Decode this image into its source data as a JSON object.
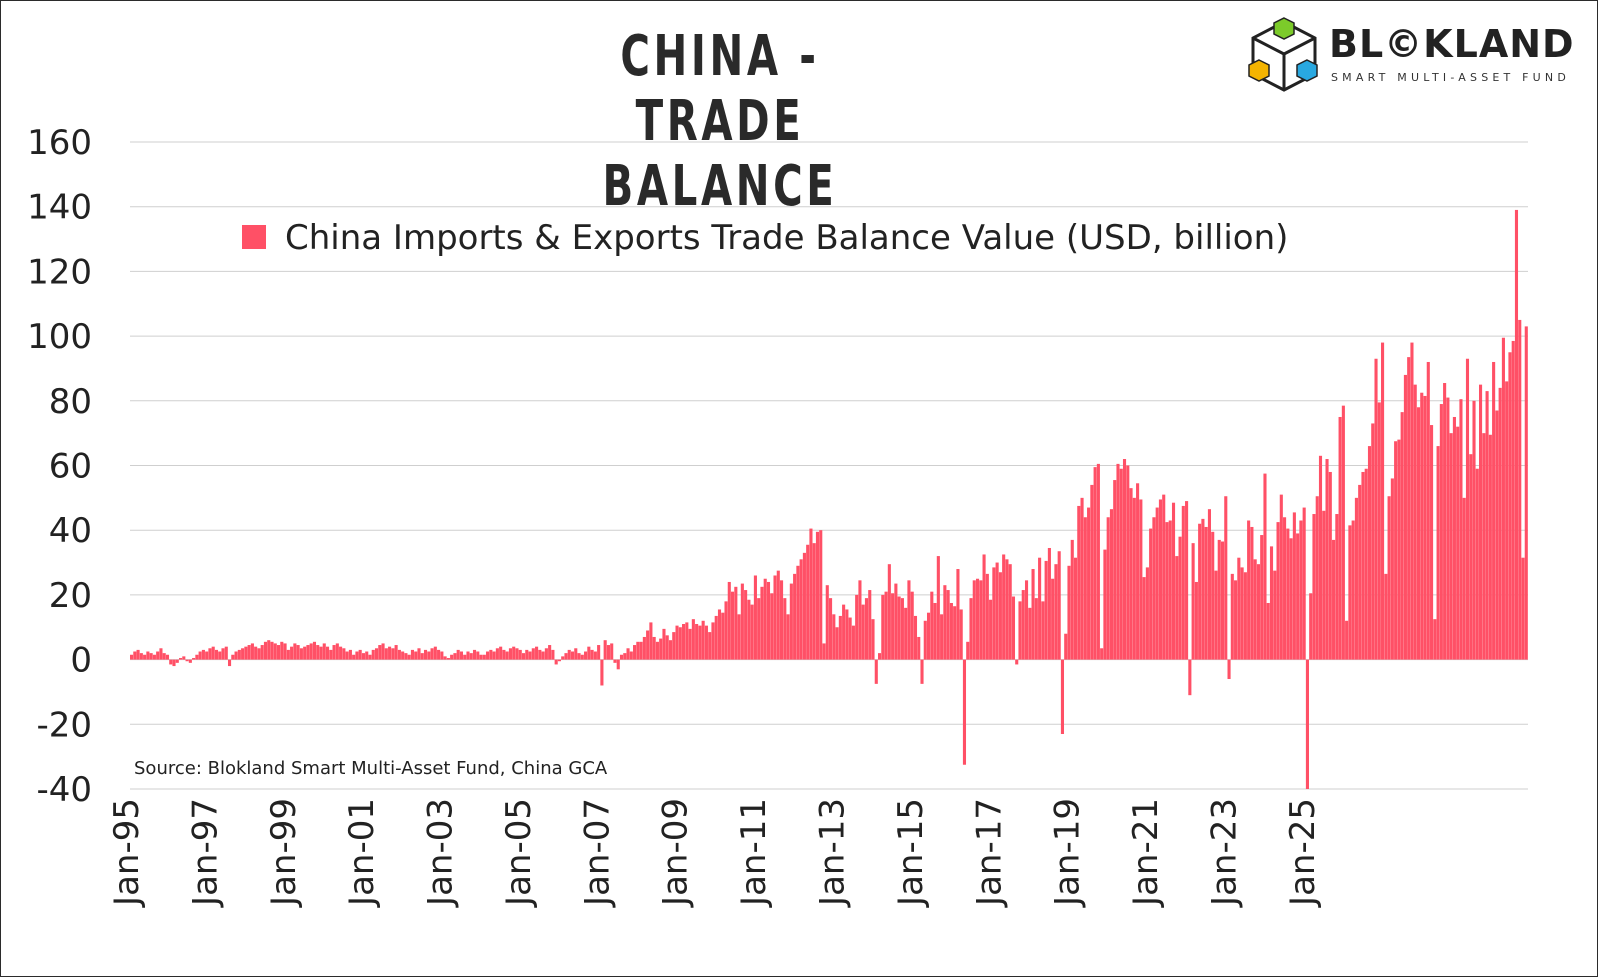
{
  "title": "CHINA - TRADE BALANCE",
  "logo": {
    "name": "BL©KLAND",
    "subtitle": "SMART MULTI-ASSET FUND",
    "icon": "cube-logo-icon"
  },
  "source": "Source: Blokland Smart Multi-Asset Fund, China GCA",
  "colors": {
    "bar": "#ff5066",
    "grid": "#cfcfcf",
    "text": "#222222"
  },
  "chart_data": {
    "type": "bar",
    "title": "CHINA - TRADE BALANCE",
    "legend": {
      "label": "China Imports & Exports Trade Balance Value (USD, billion)",
      "position": "top-center"
    },
    "ylim": [
      -40,
      160
    ],
    "yticks": [
      "160",
      "140",
      "120",
      "100",
      "80",
      "60",
      "40",
      "20",
      "0",
      "-20",
      "-40"
    ],
    "xticks": [
      "Jan-95",
      "Jan-97",
      "Jan-99",
      "Jan-01",
      "Jan-03",
      "Jan-05",
      "Jan-07",
      "Jan-09",
      "Jan-11",
      "Jan-13",
      "Jan-15",
      "Jan-17",
      "Jan-19",
      "Jan-21",
      "Jan-23",
      "Jan-25"
    ],
    "grid": true,
    "start": "Jan-95",
    "frequency": "monthly",
    "values": [
      1.5,
      2.5,
      3.0,
      2.0,
      1.5,
      2.5,
      2.0,
      1.5,
      2.5,
      3.5,
      2.0,
      1.5,
      -1.5,
      -2.0,
      -1.0,
      0.5,
      1.0,
      -0.5,
      -1.0,
      0.5,
      1.5,
      2.5,
      3.0,
      2.5,
      3.5,
      4.0,
      3.0,
      2.5,
      3.5,
      4.0,
      -2.0,
      1.5,
      2.5,
      3.0,
      3.5,
      4.0,
      4.5,
      5.0,
      4.0,
      3.5,
      4.5,
      5.5,
      6.0,
      5.5,
      5.0,
      4.5,
      5.5,
      5.0,
      3.0,
      4.0,
      5.0,
      4.5,
      3.5,
      4.0,
      4.5,
      5.0,
      5.5,
      4.5,
      4.0,
      5.0,
      4.0,
      3.0,
      4.5,
      5.0,
      4.0,
      3.5,
      2.5,
      3.0,
      1.5,
      2.5,
      3.0,
      2.0,
      2.5,
      1.5,
      3.0,
      3.5,
      4.5,
      5.0,
      3.5,
      4.0,
      3.5,
      4.5,
      3.0,
      2.5,
      2.0,
      1.5,
      3.0,
      2.5,
      3.5,
      2.0,
      3.0,
      2.5,
      3.5,
      4.0,
      3.0,
      2.5,
      1.0,
      0.5,
      1.5,
      2.0,
      3.0,
      2.5,
      1.5,
      2.5,
      2.0,
      3.0,
      2.5,
      1.5,
      1.5,
      2.5,
      3.0,
      2.5,
      3.5,
      4.0,
      3.0,
      2.5,
      3.5,
      4.0,
      3.5,
      3.0,
      2.0,
      3.0,
      2.5,
      3.5,
      4.0,
      3.0,
      2.5,
      3.5,
      4.5,
      3.0,
      -1.5,
      -0.5,
      1.0,
      2.0,
      3.0,
      2.5,
      3.5,
      2.0,
      1.5,
      2.5,
      4.0,
      3.0,
      2.5,
      4.5,
      -8.0,
      6.0,
      4.5,
      5.0,
      -1.0,
      -3.0,
      1.5,
      2.0,
      3.5,
      2.5,
      4.5,
      5.5,
      5.5,
      7.0,
      9.0,
      11.5,
      7.0,
      5.5,
      6.5,
      9.5,
      7.5,
      6.0,
      8.5,
      10.5,
      10.0,
      11.0,
      11.5,
      9.5,
      12.5,
      11.0,
      10.5,
      12.0,
      10.5,
      8.5,
      11.5,
      13.5,
      15.5,
      14.5,
      18.0,
      24.0,
      21.0,
      22.5,
      14.0,
      23.5,
      21.5,
      18.5,
      17.0,
      26.0,
      19.0,
      22.5,
      25.0,
      24.0,
      20.5,
      26.0,
      27.5,
      24.5,
      19.0,
      14.0,
      23.5,
      26.5,
      29.0,
      31.0,
      33.0,
      35.5,
      40.5,
      36.0,
      39.5,
      40.0,
      5.0,
      23.0,
      19.0,
      14.0,
      10.0,
      13.5,
      17.0,
      15.5,
      13.0,
      10.5,
      20.0,
      24.5,
      17.0,
      19.0,
      21.5,
      12.5,
      -7.5,
      2.0,
      20.0,
      21.0,
      29.5,
      20.5,
      23.5,
      19.5,
      19.0,
      16.0,
      24.5,
      21.0,
      13.5,
      7.0,
      -7.5,
      12.0,
      14.5,
      21.0,
      17.5,
      32.0,
      14.0,
      23.0,
      21.5,
      17.5,
      16.5,
      28.0,
      15.5,
      -32.5,
      5.5,
      19.0,
      24.5,
      25.0,
      24.5,
      32.5,
      26.5,
      18.5,
      28.5,
      30.0,
      27.0,
      32.5,
      31.0,
      29.5,
      19.5,
      -1.5,
      18.0,
      21.5,
      24.5,
      16.0,
      28.0,
      19.0,
      31.5,
      18.0,
      30.5,
      34.5,
      25.0,
      29.5,
      33.5,
      -23.0,
      8.0,
      29.0,
      37.0,
      31.5,
      47.5,
      50.0,
      44.0,
      47.0,
      54.0,
      59.5,
      60.5,
      3.5,
      34.0,
      44.0,
      46.5,
      55.5,
      60.5,
      59.0,
      62.0,
      60.0,
      53.0,
      50.0,
      54.5,
      49.5,
      25.5,
      28.5,
      40.5,
      44.0,
      47.0,
      49.5,
      51.0,
      42.5,
      43.0,
      48.5,
      32.0,
      38.0,
      47.5,
      49.0,
      -11.0,
      36.0,
      24.0,
      42.0,
      43.5,
      41.0,
      46.5,
      39.5,
      27.5,
      37.0,
      36.5,
      50.5,
      -6.0,
      26.5,
      24.5,
      31.5,
      28.5,
      27.0,
      43.0,
      41.0,
      31.0,
      29.5,
      38.5,
      57.5,
      17.5,
      35.0,
      27.5,
      42.5,
      51.0,
      44.0,
      40.5,
      37.5,
      45.5,
      39.0,
      43.0,
      47.0,
      -40.0,
      20.5,
      45.0,
      50.5,
      63.0,
      46.0,
      62.0,
      58.0,
      37.0,
      45.0,
      75.0,
      78.5,
      12.0,
      41.5,
      43.0,
      50.0,
      54.0,
      58.0,
      59.0,
      66.0,
      73.0,
      93.0,
      79.5,
      98.0,
      26.5,
      50.5,
      56.0,
      67.5,
      68.0,
      76.5,
      88.0,
      93.5,
      98.0,
      85.0,
      78.0,
      82.5,
      81.5,
      92.0,
      72.5,
      12.5,
      66.0,
      79.0,
      85.5,
      81.0,
      70.0,
      75.0,
      72.0,
      80.5,
      50.0,
      93.0,
      63.5,
      80.0,
      59.0,
      85.0,
      70.0,
      83.0,
      69.5,
      92.0,
      77.0,
      84.0,
      99.5,
      86.0,
      95.0,
      98.5,
      139.0,
      105.0,
      31.5,
      103.0
    ]
  }
}
